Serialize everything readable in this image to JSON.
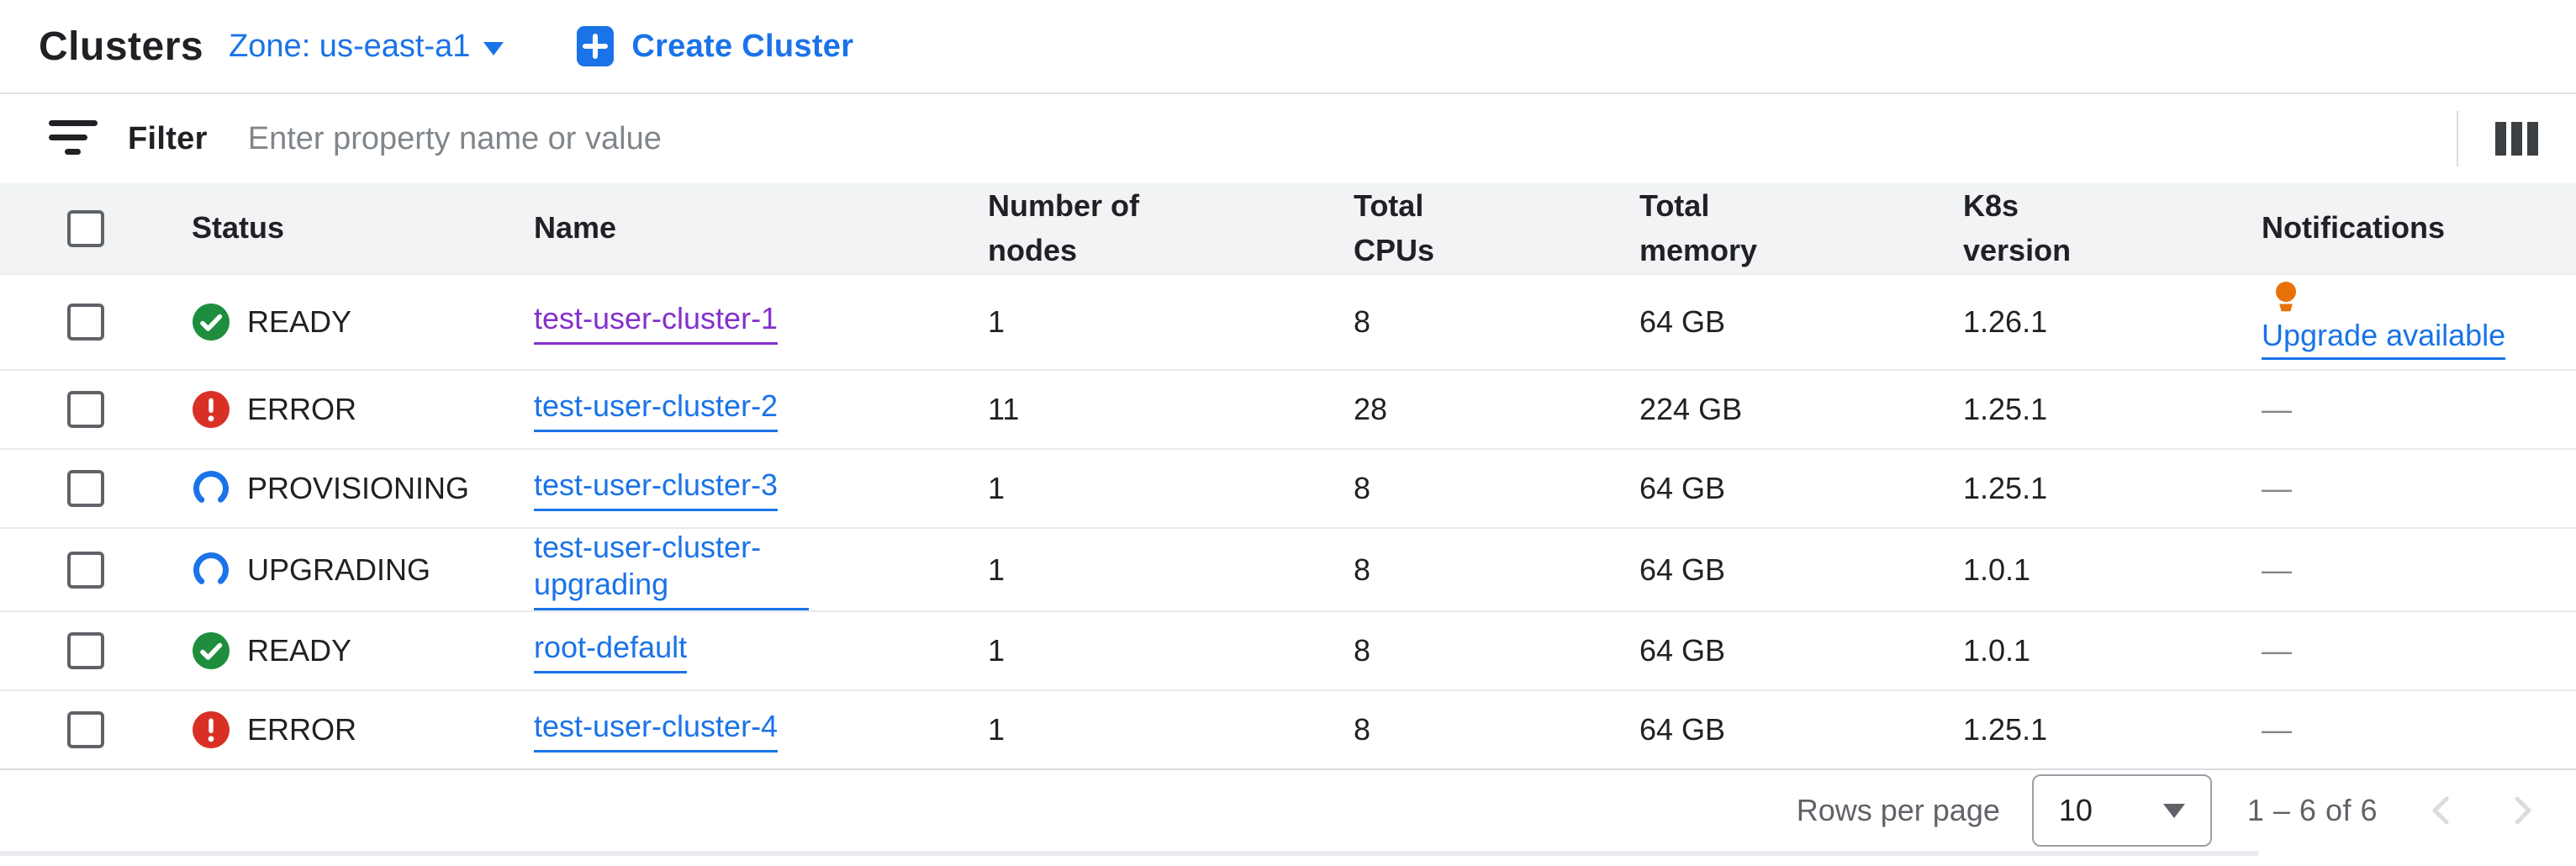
{
  "colors": {
    "accent_blue": "#1a73e8",
    "visited_purple": "#8430ce",
    "success_green": "#1e8e3e",
    "error_red": "#d93025",
    "warning_orange": "#e8710a"
  },
  "header": {
    "title": "Clusters",
    "zone_selector": "Zone: us-east-a1",
    "create_button": "Create Cluster"
  },
  "toolbar": {
    "filter_label": "Filter",
    "filter_placeholder": "Enter property name or value"
  },
  "table": {
    "columns": [
      "Status",
      "Name",
      "Number of\nnodes",
      "Total\nCPUs",
      "Total\nmemory",
      "K8s\nversion",
      "Notifications"
    ],
    "rows": [
      {
        "status": "READY",
        "status_icon": "check-circle-icon",
        "name": "test-user-cluster-1",
        "name_link_visited": true,
        "nodes": "1",
        "cpus": "8",
        "memory": "64 GB",
        "k8s_version": "1.26.1",
        "notification": "Upgrade available",
        "notification_icon": "lightbulb-icon",
        "notification_type": "upgrade"
      },
      {
        "status": "ERROR",
        "status_icon": "error-circle-icon",
        "name": "test-user-cluster-2",
        "name_link_visited": false,
        "nodes": "11",
        "cpus": "28",
        "memory": "224 GB",
        "k8s_version": "1.25.1",
        "notification": "—",
        "notification_type": "none"
      },
      {
        "status": "PROVISIONING",
        "status_icon": "progress-circle-icon",
        "name": "test-user-cluster-3",
        "name_link_visited": false,
        "nodes": "1",
        "cpus": "8",
        "memory": "64 GB",
        "k8s_version": "1.25.1",
        "notification": "—",
        "notification_type": "none"
      },
      {
        "status": "UPGRADING",
        "status_icon": "progress-circle-icon",
        "name": "test-user-cluster-upgrading",
        "name_link_visited": false,
        "nodes": "1",
        "cpus": "8",
        "memory": "64 GB",
        "k8s_version": "1.0.1",
        "notification": "—",
        "notification_type": "none"
      },
      {
        "status": "READY",
        "status_icon": "check-circle-icon",
        "name": "root-default",
        "name_link_visited": false,
        "nodes": "1",
        "cpus": "8",
        "memory": "64 GB",
        "k8s_version": "1.0.1",
        "notification": "—",
        "notification_type": "none"
      },
      {
        "status": "ERROR",
        "status_icon": "error-circle-icon",
        "name": "test-user-cluster-4",
        "name_link_visited": false,
        "nodes": "1",
        "cpus": "8",
        "memory": "64 GB",
        "k8s_version": "1.25.1",
        "notification": "—",
        "notification_type": "none"
      }
    ]
  },
  "footer": {
    "rows_per_page_label": "Rows per page",
    "rows_per_page_value": "10",
    "range_label": "1 – 6 of 6"
  }
}
